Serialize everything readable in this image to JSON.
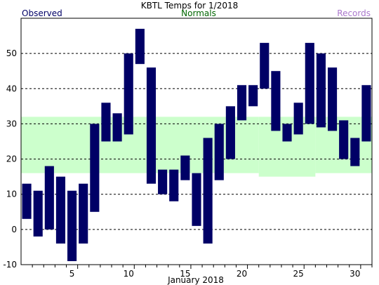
{
  "chart_data": {
    "type": "bar",
    "title": "KBTL Temps for 1/2018",
    "xlabel": "January 2018",
    "ylabel": "",
    "xlim": [
      1,
      31
    ],
    "ylim": [
      -10,
      60
    ],
    "yticks": [
      -10,
      0,
      10,
      20,
      30,
      40,
      50
    ],
    "xticks": [
      5,
      10,
      15,
      20,
      25,
      30
    ],
    "grid": true,
    "legend": [
      {
        "key": "observed",
        "label": "Observed",
        "color": "#000066"
      },
      {
        "key": "normals",
        "label": "Normals",
        "color": "#006600"
      },
      {
        "key": "records",
        "label": "Records",
        "color": "#aa77cc"
      }
    ],
    "normals": {
      "name": "Normals",
      "color": "#ccffcc",
      "periods": [
        {
          "days": [
            1,
            21
          ],
          "low": 16,
          "high": 32
        },
        {
          "days": [
            22,
            26
          ],
          "low": 15,
          "high": 32
        },
        {
          "days": [
            27,
            31
          ],
          "low": 16,
          "high": 32
        }
      ]
    },
    "series": [
      {
        "name": "Observed",
        "color": "#000066",
        "days": [
          1,
          2,
          3,
          4,
          5,
          6,
          7,
          8,
          9,
          10,
          11,
          12,
          13,
          14,
          15,
          16,
          17,
          18,
          19,
          20,
          21,
          22,
          23,
          24,
          25,
          26,
          27,
          28,
          29,
          30,
          31
        ],
        "low": [
          3,
          -2,
          0,
          -4,
          -9,
          -4,
          5,
          25,
          25,
          27,
          47,
          13,
          10,
          8,
          14,
          1,
          -4,
          14,
          20,
          31,
          35,
          40,
          28,
          25,
          27,
          30,
          29,
          28,
          20,
          18,
          25
        ],
        "high": [
          13,
          11,
          18,
          15,
          11,
          13,
          30,
          36,
          33,
          50,
          57,
          46,
          17,
          17,
          21,
          16,
          26,
          30,
          35,
          41,
          41,
          53,
          45,
          30,
          36,
          53,
          50,
          46,
          31,
          26,
          41
        ]
      }
    ]
  }
}
